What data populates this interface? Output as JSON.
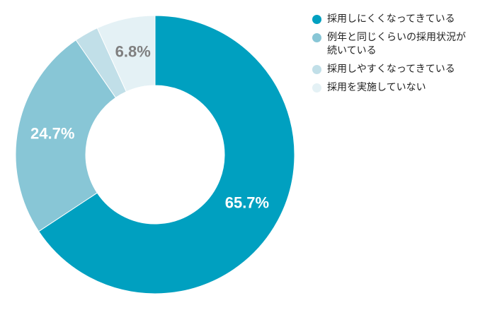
{
  "chart_data": {
    "type": "pie",
    "title": "",
    "categories": [
      "採用しにくくなってきている",
      "例年と同じくらいの採用状況が続いている",
      "採用しやすくなってきている",
      "採用を実施していない"
    ],
    "values": [
      65.7,
      24.7,
      2.8,
      6.8
    ],
    "data_labels": [
      "65.7%",
      "24.7%",
      "",
      "6.8%"
    ],
    "colors": [
      "#00A0C0",
      "#88C6D6",
      "#C1DFE8",
      "#E4F1F5"
    ],
    "label_colors": [
      "#ffffff",
      "#ffffff",
      "#ffffff",
      "#7f7f7f"
    ],
    "donut": true,
    "legend_position": "right"
  },
  "legend": {
    "items": [
      {
        "label": "採用しにくくなってきている",
        "color": "#00A0C0"
      },
      {
        "label": "例年と同じくらいの採用状況が続いている",
        "color": "#88C6D6"
      },
      {
        "label": "採用しやすくなってきている",
        "color": "#C1DFE8"
      },
      {
        "label": "採用を実施していない",
        "color": "#E4F1F5"
      }
    ]
  }
}
